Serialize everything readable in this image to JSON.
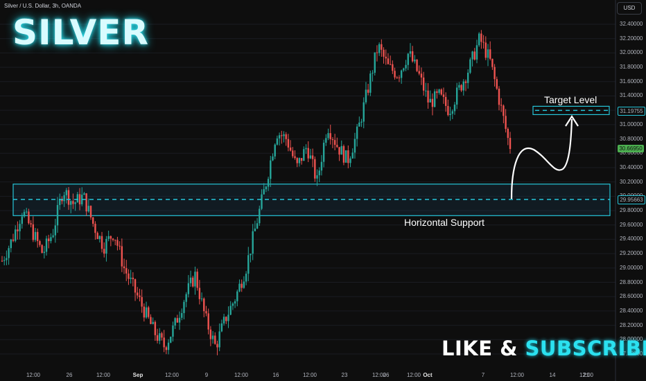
{
  "header": {
    "symbol_line": "Silver / U.S. Dollar, 3h, OANDA",
    "currency": "USD"
  },
  "title": "SILVER",
  "cta": {
    "part1": "LIKE &",
    "part2": "SUBSCRIBE"
  },
  "colors": {
    "up": "#26a69a",
    "down": "#ef5350",
    "accent": "#26c6da",
    "background": "#0e0e0e"
  },
  "chart_data": {
    "type": "candlestick",
    "y_axis": {
      "ticks": [
        "32.40000",
        "32.20000",
        "32.00000",
        "31.80000",
        "31.60000",
        "31.40000",
        "31.20000",
        "31.00000",
        "30.80000",
        "30.60000",
        "30.40000",
        "30.20000",
        "30.00000",
        "29.80000",
        "29.60000",
        "29.40000",
        "29.20000",
        "29.00000",
        "28.80000",
        "28.60000",
        "28.40000",
        "28.20000",
        "28.00000",
        "27.80000"
      ],
      "range": [
        27.72,
        32.55
      ]
    },
    "x_axis": {
      "ticks": [
        {
          "label": "12:00",
          "bold": false
        },
        {
          "label": "26",
          "bold": false
        },
        {
          "label": "12:00",
          "bold": false
        },
        {
          "label": "Sep",
          "bold": true
        },
        {
          "label": "12:00",
          "bold": false
        },
        {
          "label": "9",
          "bold": false
        },
        {
          "label": "12:00",
          "bold": false
        },
        {
          "label": "16",
          "bold": false
        },
        {
          "label": "12:00",
          "bold": false
        },
        {
          "label": "23",
          "bold": false
        },
        {
          "label": "12:00",
          "bold": false
        },
        {
          "label": "26",
          "bold": false
        },
        {
          "label": "12:00",
          "bold": false
        },
        {
          "label": "Oct",
          "bold": true
        },
        {
          "label": "7",
          "bold": false
        },
        {
          "label": "12:00",
          "bold": false
        },
        {
          "label": "14",
          "bold": false
        },
        {
          "label": "21",
          "bold": false
        },
        {
          "label": "12:00",
          "bold": false
        }
      ]
    },
    "trend_closes": [
      29.1,
      29.4,
      29.8,
      29.5,
      29.2,
      29.5,
      30.1,
      29.9,
      30.0,
      29.6,
      29.3,
      29.5,
      29.0,
      28.7,
      28.4,
      28.1,
      27.9,
      28.2,
      28.6,
      28.9,
      28.3,
      27.9,
      28.3,
      28.6,
      29.0,
      29.6,
      30.2,
      30.9,
      30.8,
      30.4,
      30.7,
      30.2,
      31.0,
      30.7,
      30.5,
      30.9,
      31.5,
      32.1,
      31.8,
      31.7,
      32.0,
      31.7,
      31.3,
      31.4,
      31.2,
      31.5,
      31.8,
      32.2,
      31.9,
      31.3,
      30.66
    ],
    "current_price": "30.66950",
    "levels": [
      {
        "name": "Target Level",
        "price": 31.19755,
        "label": "31.19755"
      },
      {
        "name": "Horizontal Support",
        "price": 29.95663,
        "label": "29.95663",
        "zone": [
          29.73,
          30.17
        ]
      }
    ],
    "annotations": [
      "Target Level",
      "Horizontal Support"
    ]
  }
}
